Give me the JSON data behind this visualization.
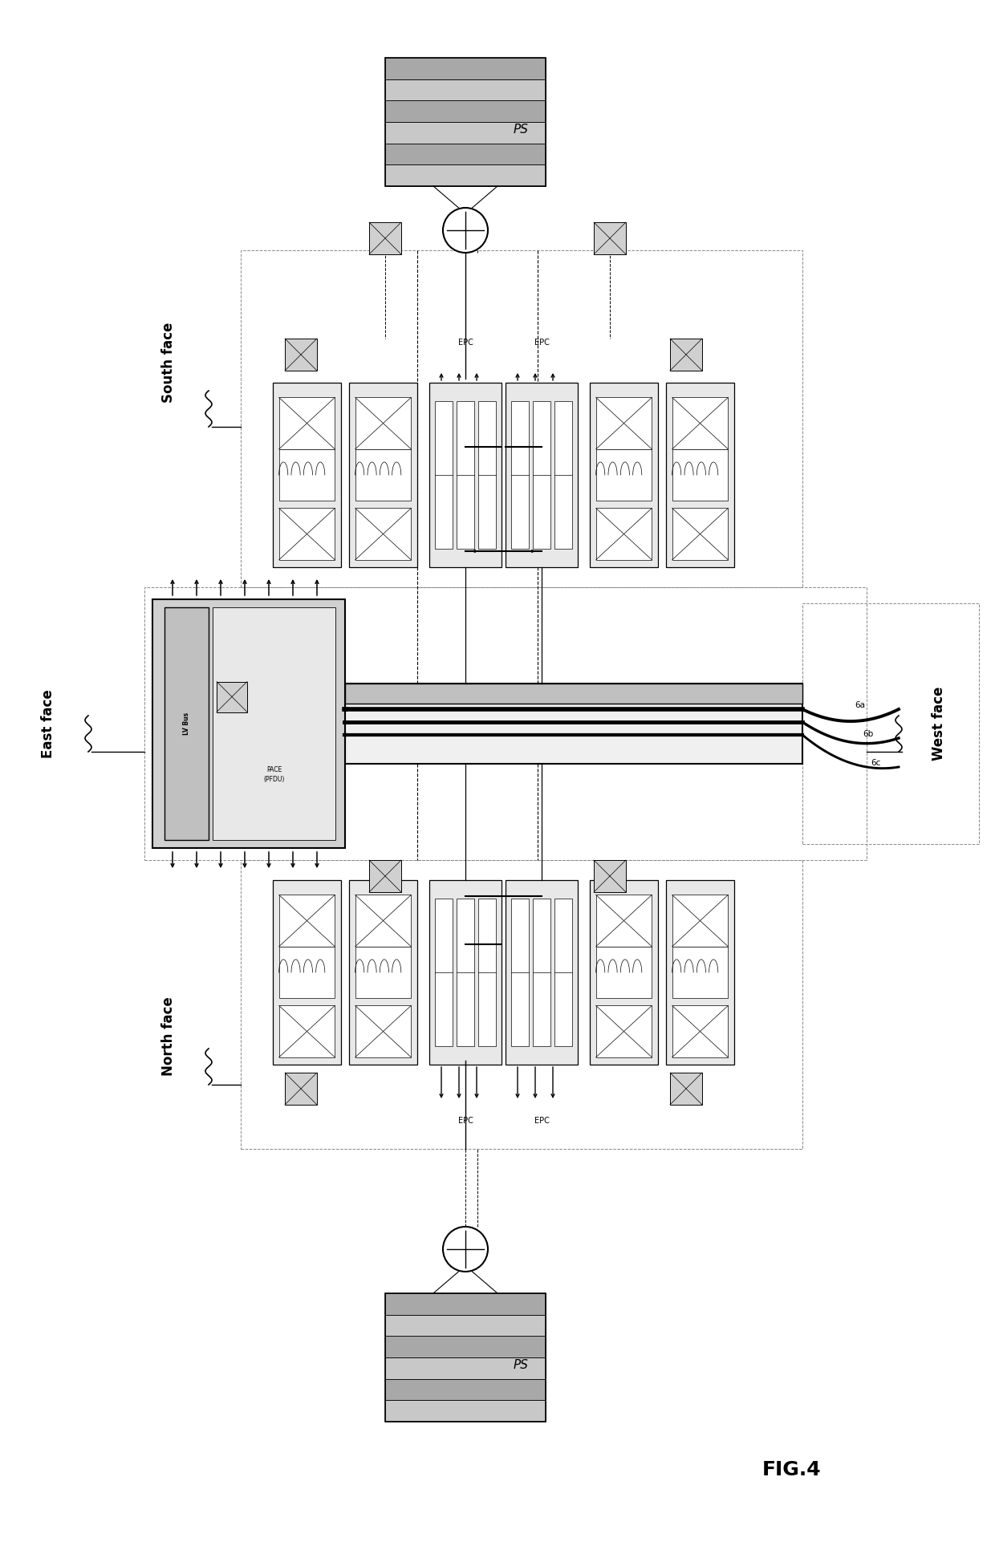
{
  "bg_color": "#ffffff",
  "fig_label": "FIG.4",
  "labels": {
    "east_face": "East face",
    "south_face": "South face",
    "north_face": "North face",
    "west_face": "West face",
    "ps": "PS",
    "epc": "EPC",
    "lv_bus": "LV Bus",
    "pace_pfdu": "PACE\n(PFDU)",
    "wire_6a": "6a",
    "wire_6b": "6b",
    "wire_6c": "6c"
  },
  "colors": {
    "dashed_border": "#888888",
    "shaded_gray": "#d0d0d0",
    "medium_gray": "#c0c0c0",
    "light_gray": "#e8e8e8",
    "module_bg": "#e8e8e8",
    "white": "#ffffff",
    "black": "#000000",
    "ps_light": "#c8c8c8",
    "ps_dark": "#a8a8a8"
  }
}
